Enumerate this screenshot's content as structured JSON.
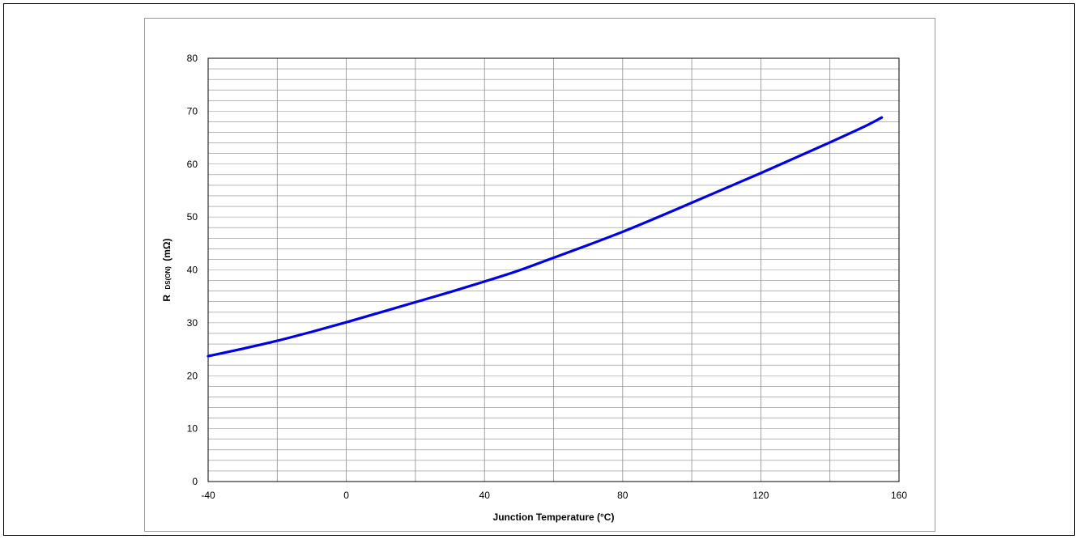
{
  "chart_data": {
    "type": "line",
    "title": "",
    "xlabel": "Junction Temperature (°C)",
    "ylabel_main": "R",
    "ylabel_sub": "DS(ON)",
    "ylabel_unit": "(mΩ)",
    "xlim": [
      -40,
      160
    ],
    "ylim": [
      0,
      80
    ],
    "x_ticks": [
      "-40",
      "0",
      "40",
      "80",
      "120",
      "160"
    ],
    "y_ticks": [
      "0",
      "10",
      "20",
      "30",
      "40",
      "50",
      "60",
      "70",
      "80"
    ],
    "grid": true,
    "legend": "none",
    "series": [
      {
        "color": "#0000e6",
        "x": [
          -40,
          -30,
          -20,
          -10,
          0,
          10,
          20,
          30,
          40,
          50,
          60,
          70,
          80,
          90,
          100,
          110,
          120,
          130,
          140,
          150,
          155
        ],
        "y": [
          23.7,
          25.1,
          26.6,
          28.3,
          30.1,
          32.0,
          33.9,
          35.8,
          37.8,
          39.9,
          42.3,
          44.7,
          47.2,
          49.9,
          52.7,
          55.5,
          58.3,
          61.2,
          64.1,
          67.1,
          68.8
        ]
      }
    ]
  }
}
